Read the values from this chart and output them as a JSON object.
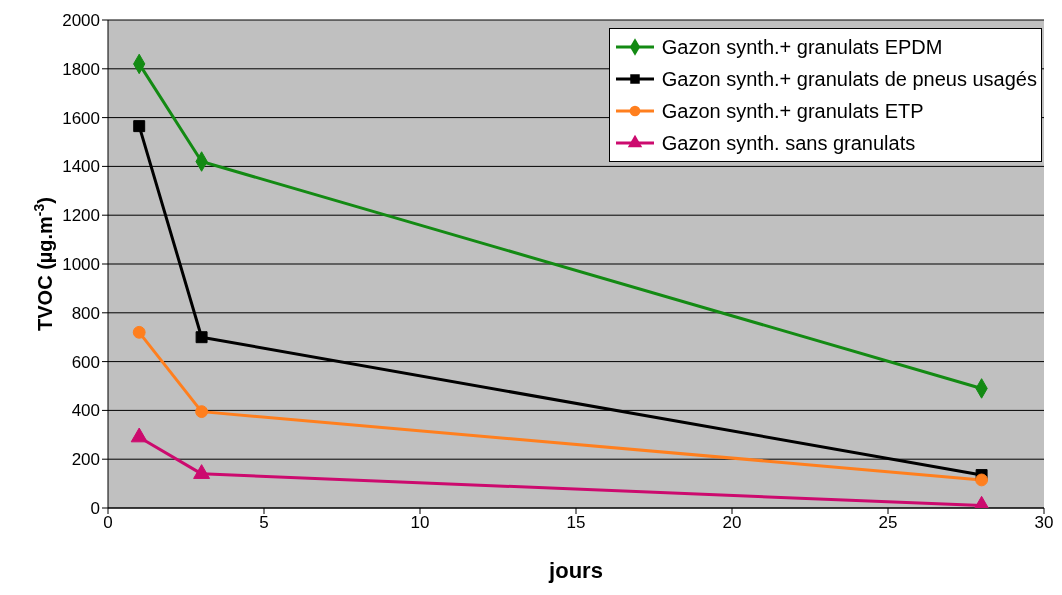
{
  "chart_data": {
    "type": "line",
    "xlabel": "jours",
    "ylabel": "TVOC (µg.m$^{-3}$)",
    "x": [
      1,
      3,
      28
    ],
    "series": [
      {
        "name": "Gazon synth.+ granulats EPDM",
        "color": "#138a13",
        "marker": "diamond",
        "values": [
          1820,
          1420,
          490
        ]
      },
      {
        "name": "Gazon synth.+ granulats de pneus usagés",
        "color": "#000000",
        "marker": "square",
        "values": [
          1565,
          700,
          135
        ]
      },
      {
        "name": "Gazon synth.+ granulats ETP",
        "color": "#ff7f1e",
        "marker": "circle",
        "values": [
          720,
          395,
          115
        ]
      },
      {
        "name": "Gazon synth. sans granulats",
        "color": "#cc0a6e",
        "marker": "triangle",
        "values": [
          290,
          140,
          10
        ]
      }
    ],
    "xlim": [
      0,
      30
    ],
    "xticks": [
      0,
      5,
      10,
      15,
      20,
      25,
      30
    ],
    "ylim": [
      0,
      2000
    ],
    "yticks": [
      0,
      200,
      400,
      600,
      800,
      1000,
      1200,
      1400,
      1600,
      1800,
      2000
    ],
    "grid": "y",
    "legend": "top right",
    "line_style": "solid"
  }
}
